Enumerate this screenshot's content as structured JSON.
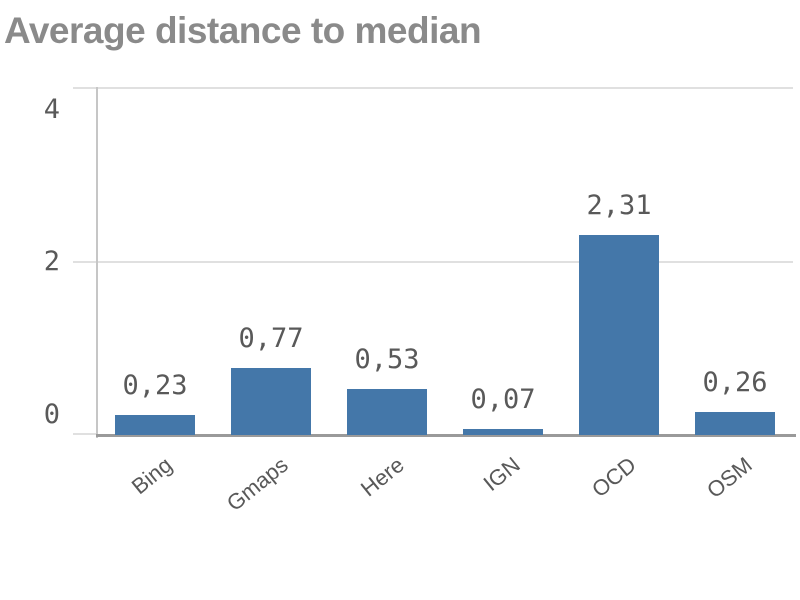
{
  "title": "Average distance to median",
  "colors": {
    "background": "#ffffff",
    "title": "#8a8a8a",
    "bar": "#4477a9",
    "text": "#595959",
    "gridline": "#e0e0e0",
    "y_axis_line": "#c6c6c6",
    "baseline": "#9a9a9a"
  },
  "chart_data": {
    "type": "bar",
    "title": "Average distance to median",
    "categories": [
      "Bing",
      "Gmaps",
      "Here",
      "IGN",
      "OCD",
      "OSM"
    ],
    "values": [
      0.23,
      0.77,
      0.53,
      0.07,
      2.31,
      0.26
    ],
    "value_labels": [
      "0,23",
      "0,77",
      "0,53",
      "0,07",
      "2,31",
      "0,26"
    ],
    "decimal_separator": ",",
    "xlabel": "",
    "ylabel": "",
    "ylim": [
      0,
      4
    ],
    "y_ticks": [
      0,
      2,
      4
    ],
    "y_tick_labels": [
      "0",
      "2",
      "4"
    ],
    "grid": true,
    "legend": false,
    "x_label_rotation_deg": -39
  }
}
